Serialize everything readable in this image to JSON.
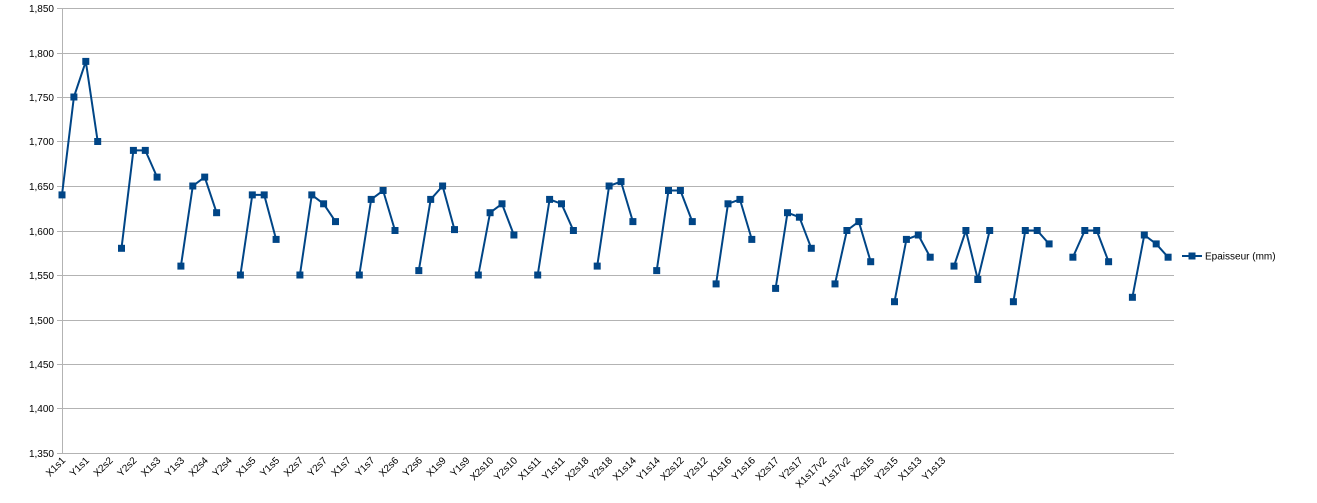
{
  "chart_data": {
    "type": "line",
    "title": "",
    "xlabel": "",
    "ylabel": "",
    "ylim": [
      1.35,
      1.85
    ],
    "ytick_step": 0.05,
    "y_ticks": [
      "1,350",
      "1,400",
      "1,450",
      "1,500",
      "1,550",
      "1,600",
      "1,650",
      "1,700",
      "1,750",
      "1,800",
      "1,850"
    ],
    "grid": true,
    "legend_position": "right",
    "colors": {
      "series": "#004586",
      "grid": "#b3b3b3",
      "axis": "#b3b3b3"
    },
    "x_tick_labels": [
      "X1s1",
      "Y1s1",
      "X2s2",
      "Y2s2",
      "X1s3",
      "Y1s3",
      "X2s4",
      "Y2s4",
      "X1s5",
      "Y1s5",
      "X2s7",
      "Y2s7",
      "X1s7",
      "Y1s7",
      "X2s6",
      "Y2s6",
      "X1s9",
      "Y1s9",
      "X2s10",
      "Y2s10",
      "X1s11",
      "Y1s11",
      "X2s18",
      "Y2s18",
      "X1s14",
      "Y1s14",
      "X2s12",
      "Y2s12",
      "X1s16",
      "Y1s16",
      "X2s17",
      "Y2s17",
      "X1s17v2",
      "Y1s17v2",
      "X2s15",
      "Y2s15",
      "X1s13",
      "Y1s13"
    ],
    "series": [
      {
        "name": "Epaisseur (mm)",
        "segments": [
          [
            1.64,
            1.75,
            1.79,
            1.7
          ],
          [
            1.58,
            1.69,
            1.69,
            1.66
          ],
          [
            1.56,
            1.65,
            1.66,
            1.62
          ],
          [
            1.55,
            1.64,
            1.64,
            1.59
          ],
          [
            1.55,
            1.64,
            1.63,
            1.61
          ],
          [
            1.55,
            1.635,
            1.645,
            1.6
          ],
          [
            1.555,
            1.635,
            1.65,
            1.601
          ],
          [
            1.55,
            1.62,
            1.63,
            1.595
          ],
          [
            1.55,
            1.635,
            1.63,
            1.6
          ],
          [
            1.56,
            1.65,
            1.655,
            1.61
          ],
          [
            1.555,
            1.645,
            1.645,
            1.61
          ],
          [
            1.54,
            1.63,
            1.635,
            1.59
          ],
          [
            1.535,
            1.62,
            1.615,
            1.58
          ],
          [
            1.54,
            1.6,
            1.61,
            1.565
          ],
          [
            1.52,
            1.59,
            1.595,
            1.57
          ],
          [
            1.56,
            1.6,
            1.545,
            1.6
          ],
          [
            1.52,
            1.6,
            1.6,
            1.585
          ],
          [
            1.57,
            1.6,
            1.6,
            1.565
          ],
          [
            1.525,
            1.595,
            1.585,
            1.57
          ]
        ]
      }
    ]
  }
}
